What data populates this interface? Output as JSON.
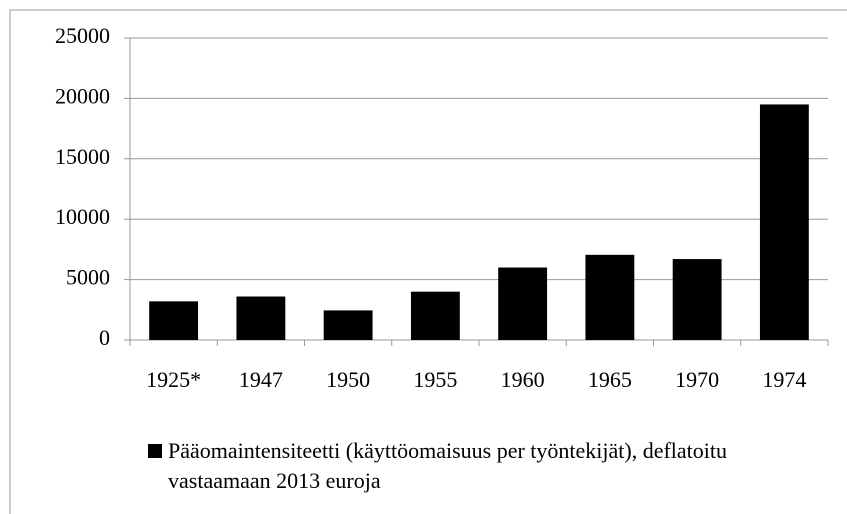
{
  "chart_data": {
    "type": "bar",
    "categories": [
      "1925*",
      "1947",
      "1950",
      "1955",
      "1960",
      "1965",
      "1970",
      "1974"
    ],
    "series": [
      {
        "name": "Pääomaintensiteetti (käyttöomaisuus per työntekijät), deflatoitu vastaamaan 2013 euroja",
        "color": "#000000",
        "values": [
          3200,
          3600,
          2450,
          4000,
          6000,
          7050,
          6700,
          19500
        ]
      }
    ],
    "ylim": [
      0,
      25000
    ],
    "yticks": [
      0,
      5000,
      10000,
      15000,
      20000,
      25000
    ],
    "grid": true,
    "legend": "bottom"
  }
}
